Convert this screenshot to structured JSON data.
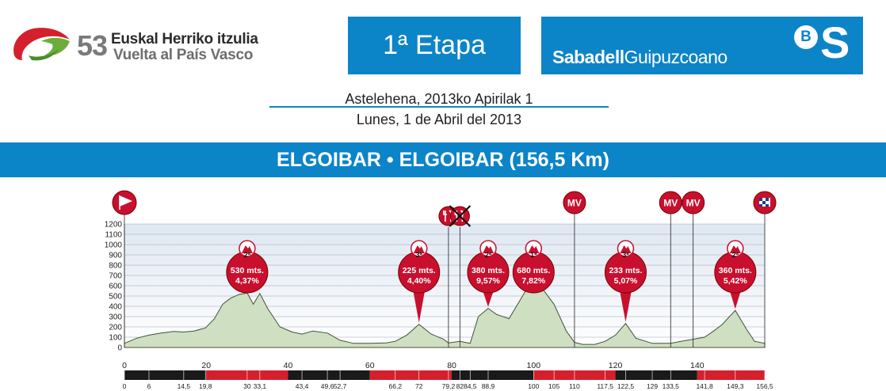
{
  "race": {
    "edition": "53",
    "name_basque": "Euskal Herriko itzulia",
    "name_spanish": "Vuelta al País Vasco"
  },
  "stage_title": "1ª Etapa",
  "sponsor": {
    "bold": "Sabadell",
    "regular": "Guipuzcoano",
    "badge_b": "B",
    "badge_s": "S"
  },
  "date_basque": "Astelehena, 2013ko Apirilak 1",
  "date_spanish": "Lunes, 1 de Abril del 2013",
  "route": "ELGOIBAR • ELGOIBAR (156,5 Km)",
  "colors": {
    "brand_blue": "#0c84c8",
    "profile_fill": "#cfe0c2",
    "profile_stroke": "#44503c",
    "sky_top": "#dfe7f1",
    "climb_red": "#c8102e",
    "km_bar_dark": "#1a1a1a",
    "km_bar_red": "#d4202c"
  },
  "chart_data": {
    "type": "area",
    "title": "ELGOIBAR • ELGOIBAR (156,5 Km)",
    "xlabel": "",
    "ylabel": "",
    "xlim": [
      0,
      156.5
    ],
    "ylim": [
      0,
      1200
    ],
    "y_ticks": [
      0,
      100,
      200,
      300,
      400,
      500,
      600,
      700,
      800,
      900,
      1000,
      1100,
      1200
    ],
    "x_ticks": [
      0,
      20,
      40,
      60,
      80,
      100,
      120,
      140
    ],
    "grid": true,
    "profile": {
      "x": [
        0,
        3,
        6,
        9,
        12,
        14.5,
        17,
        19.8,
        22,
        24,
        26,
        28,
        30,
        31.5,
        33.1,
        35,
        38,
        41,
        43.4,
        46,
        49.6,
        52.7,
        56,
        60,
        64,
        66.2,
        69,
        72,
        75,
        78,
        79.2,
        82,
        84.5,
        86.5,
        88.9,
        91,
        94,
        97,
        100,
        102,
        105,
        108,
        110,
        112,
        115,
        117.5,
        120,
        122.5,
        125,
        129,
        133.5,
        136,
        139,
        141.8,
        144,
        146,
        149.3,
        152,
        154,
        156.5
      ],
      "y": [
        40,
        90,
        120,
        140,
        155,
        150,
        160,
        190,
        280,
        420,
        480,
        515,
        530,
        420,
        525,
        380,
        200,
        150,
        130,
        160,
        140,
        70,
        40,
        40,
        45,
        60,
        120,
        225,
        130,
        80,
        45,
        60,
        40,
        300,
        380,
        320,
        280,
        480,
        680,
        580,
        420,
        160,
        50,
        30,
        30,
        60,
        120,
        233,
        90,
        40,
        40,
        60,
        80,
        100,
        160,
        220,
        360,
        180,
        60,
        40
      ]
    },
    "km_points": [
      "0",
      "6",
      "14,5",
      "19,8",
      "30",
      "33,1",
      "43,4",
      "49,6",
      "52,7",
      "66,2",
      "72",
      "79,2",
      "82",
      "84,5",
      "88,9",
      "100",
      "105",
      "110",
      "117,5",
      "122,5",
      "129",
      "133,5",
      "141,8",
      "149,3",
      "156,5"
    ],
    "km_points_values": [
      0,
      6,
      14.5,
      19.8,
      30,
      33.1,
      43.4,
      49.6,
      52.7,
      66.2,
      72,
      79.2,
      82,
      84.5,
      88.9,
      100,
      105,
      110,
      117.5,
      122.5,
      129,
      133.5,
      141.8,
      149.3,
      156.5
    ],
    "climbs": [
      {
        "category": "2ª",
        "altitude": "530 mts.",
        "gradient": "4,37%",
        "km": 30
      },
      {
        "category": "3ª",
        "altitude": "225 mts.",
        "gradient": "4,40%",
        "km": 72
      },
      {
        "category": "2ª",
        "altitude": "380 mts.",
        "gradient": "9,57%",
        "km": 88.9
      },
      {
        "category": "1ª",
        "altitude": "680 mts.",
        "gradient": "7,82%",
        "km": 100
      },
      {
        "category": "3ª",
        "altitude": "233 mts.",
        "gradient": "5,07%",
        "km": 122.5
      },
      {
        "category": "2ª",
        "altitude": "360 mts.",
        "gradient": "5,42%",
        "km": 149.3
      }
    ],
    "markers": [
      {
        "type": "start-flag",
        "label": "",
        "km": 0
      },
      {
        "type": "feed-zone",
        "label": "",
        "km": 79.2
      },
      {
        "type": "feed-zone-end",
        "label": "",
        "km": 82
      },
      {
        "type": "sprint",
        "label": "MV",
        "km": 110
      },
      {
        "type": "sprint",
        "label": "MV",
        "km": 133.5
      },
      {
        "type": "sprint",
        "label": "MV",
        "km": 139
      },
      {
        "type": "finish-flag",
        "label": "",
        "km": 156.5
      }
    ],
    "km_bar_segments": [
      0,
      20,
      40,
      60,
      80,
      100,
      120,
      140,
      156.5
    ]
  }
}
